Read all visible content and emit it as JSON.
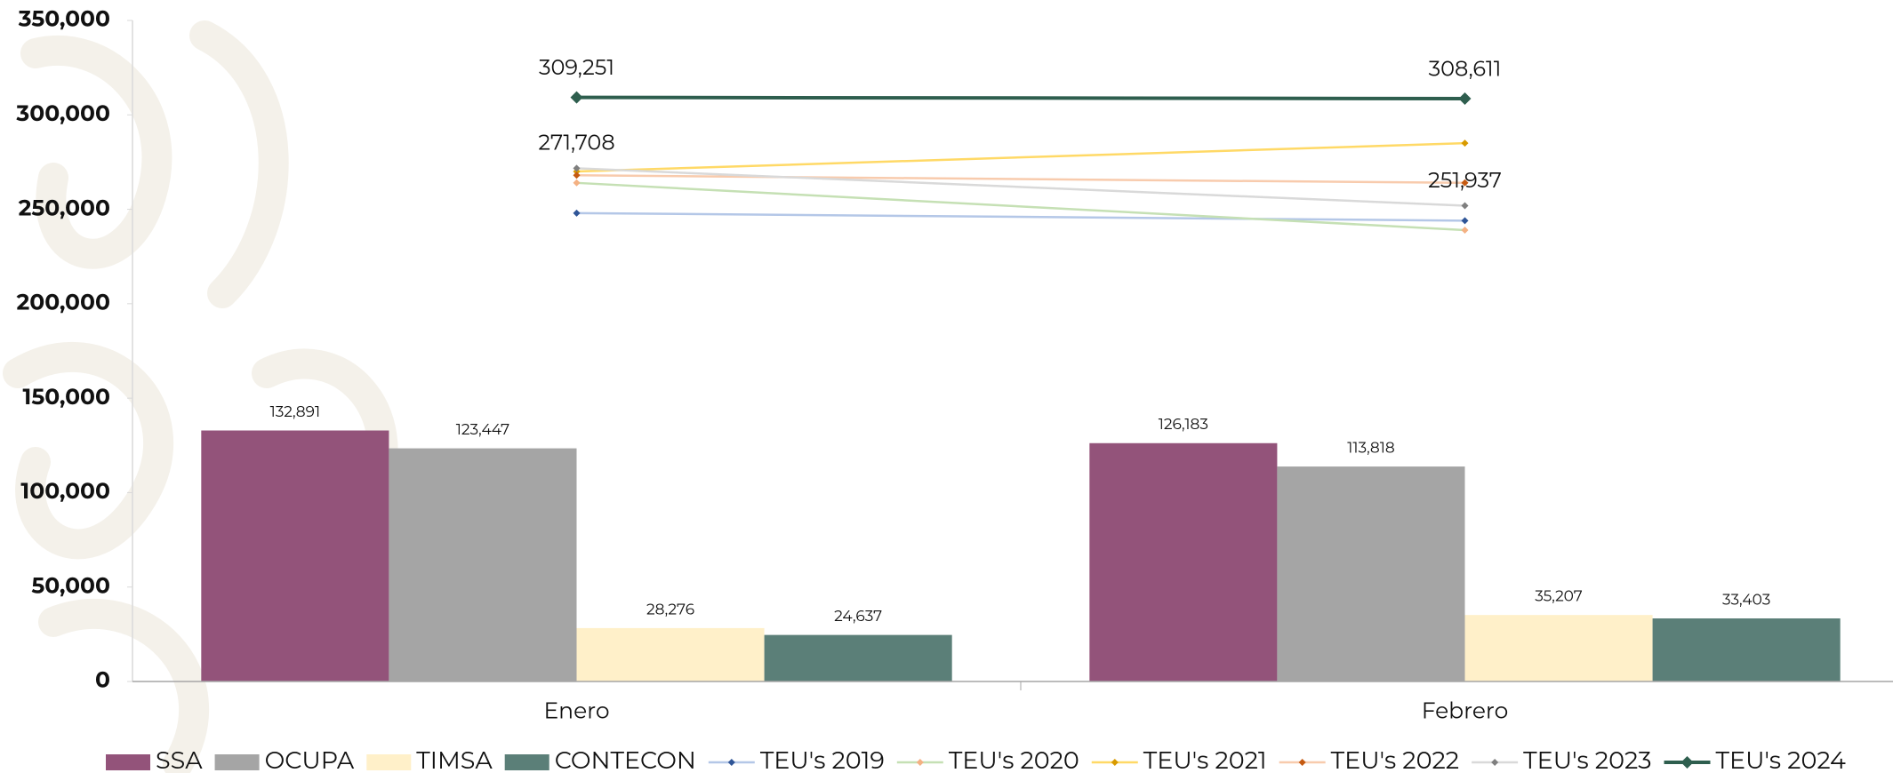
{
  "chart_data": {
    "type": "bar-line",
    "categories": [
      "Enero",
      "Febrero"
    ],
    "ylim": [
      0,
      350000
    ],
    "yticks": [
      0,
      {
        "value": 50000,
        "label": "50,000"
      },
      {
        "value": 100000,
        "label": "100,000"
      },
      {
        "value": 150000,
        "label": "150,000"
      },
      {
        "value": 200000,
        "label": "200,000"
      },
      {
        "value": 250000,
        "label": "250,000"
      },
      {
        "value": 300000,
        "label": "300,000"
      },
      {
        "value": 350000,
        "label": "350,000"
      }
    ],
    "grid": false,
    "legend": "bottom",
    "series": [
      {
        "name": "SSA",
        "type": "bar",
        "color": "#93537a",
        "values": [
          132891,
          126183
        ],
        "value_labels": [
          "132,891",
          "126,183"
        ]
      },
      {
        "name": "OCUPA",
        "type": "bar",
        "color": "#a5a5a5",
        "values": [
          123447,
          113818
        ],
        "value_labels": [
          "123,447",
          "113,818"
        ]
      },
      {
        "name": "TIMSA",
        "type": "bar",
        "color": "#fff0c9",
        "values": [
          28276,
          35207
        ],
        "value_labels": [
          "28,276",
          "35,207"
        ]
      },
      {
        "name": "CONTECON",
        "type": "bar",
        "color": "#5b7f78",
        "values": [
          24637,
          33403
        ],
        "value_labels": [
          "24,637",
          "33,403"
        ]
      },
      {
        "name": "TEU's 2019",
        "type": "line",
        "color": "#b4c7e7",
        "marker_color": "#2f5597",
        "values": [
          248000,
          244000
        ]
      },
      {
        "name": "TEU's 2020",
        "type": "line",
        "color": "#c5e0b4",
        "marker_color": "#f4b183",
        "values": [
          264000,
          239000
        ]
      },
      {
        "name": "TEU's 2021",
        "type": "line",
        "color": "#ffd966",
        "marker_color": "#d89a00",
        "values": [
          270000,
          285000
        ]
      },
      {
        "name": "TEU's 2022",
        "type": "line",
        "color": "#f8cbad",
        "marker_color": "#c55a11",
        "values": [
          268000,
          264000
        ]
      },
      {
        "name": "TEU's 2023",
        "type": "line",
        "color": "#d9d9d9",
        "marker_color": "#7f7f7f",
        "values": [
          271708,
          251937
        ],
        "value_labels": [
          "271,708",
          "251,937"
        ]
      },
      {
        "name": "TEU's 2024",
        "type": "line",
        "color": "#2e5e4e",
        "marker_color": "#2e5e4e",
        "width": 4,
        "values": [
          309251,
          308611
        ],
        "value_labels": [
          "309,251",
          "308,611"
        ]
      }
    ]
  }
}
